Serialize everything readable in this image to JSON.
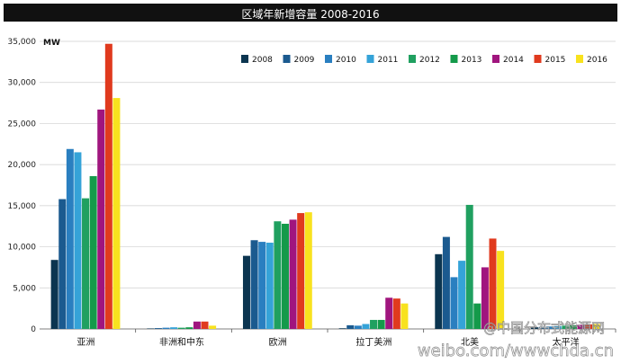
{
  "chart_data": {
    "type": "bar",
    "title": "区域年新增容量 2008-2016",
    "ylabel": "MW",
    "ylim": [
      0,
      35000
    ],
    "yticks": [
      "0",
      "5,000",
      "10,000",
      "15,000",
      "20,000",
      "25,000",
      "30,000",
      "35,000"
    ],
    "grid": true,
    "legend_position": "top-right",
    "categories": [
      "亚洲",
      "非洲和中东",
      "欧洲",
      "拉丁美洲",
      "北美",
      "太平洋"
    ],
    "series": [
      {
        "name": "2008",
        "color": "#0b3550",
        "values": [
          8400,
          60,
          8900,
          80,
          9100,
          200
        ]
      },
      {
        "name": "2009",
        "color": "#1b5a8f",
        "values": [
          15800,
          100,
          10800,
          450,
          11200,
          250
        ]
      },
      {
        "name": "2010",
        "color": "#2a7fc0",
        "values": [
          21900,
          150,
          10600,
          400,
          6300,
          300
        ]
      },
      {
        "name": "2011",
        "color": "#35a3d8",
        "values": [
          21500,
          200,
          10500,
          600,
          8300,
          350
        ]
      },
      {
        "name": "2012",
        "color": "#20a060",
        "values": [
          15900,
          150,
          13100,
          1100,
          15100,
          400
        ]
      },
      {
        "name": "2013",
        "color": "#149a4a",
        "values": [
          18600,
          200,
          12800,
          1100,
          3100,
          450
        ]
      },
      {
        "name": "2014",
        "color": "#a0157e",
        "values": [
          26700,
          900,
          13300,
          3800,
          7500,
          500
        ]
      },
      {
        "name": "2015",
        "color": "#e03a1e",
        "values": [
          34700,
          900,
          14100,
          3700,
          11000,
          550
        ]
      },
      {
        "name": "2016",
        "color": "#f8e21e",
        "values": [
          28100,
          400,
          14200,
          3100,
          9500,
          600
        ]
      }
    ]
  },
  "watermark": {
    "line1": "@中国分布式能源网",
    "line2": "weibo.com/wwwchda.cn"
  }
}
